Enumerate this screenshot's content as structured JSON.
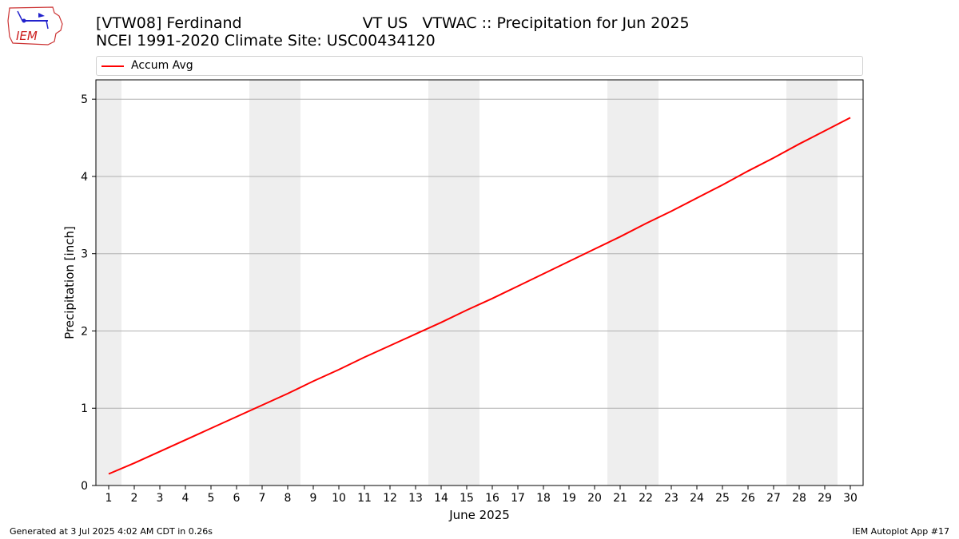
{
  "header": {
    "title_line1": "[VTW08] Ferdinand                         VT US   VTWAC :: Precipitation for Jun 2025",
    "title_line2": "NCEI 1991-2020 Climate Site: USC00434120",
    "logo_text": "IEM"
  },
  "footer": {
    "left": "Generated at 3 Jul 2025 4:02 AM CDT in 0.26s",
    "right": "IEM Autoplot App #17"
  },
  "colors": {
    "series": "#ff0000",
    "weekend_band": "#eeeeee",
    "grid": "#b0b0b0"
  },
  "chart_data": {
    "type": "line",
    "xlabel": "June 2025",
    "ylabel": "Precipitation [inch]",
    "xlim": [
      0.5,
      30.5
    ],
    "ylim": [
      0,
      5.25
    ],
    "yticks": [
      0,
      1,
      2,
      3,
      4,
      5
    ],
    "x": [
      1,
      2,
      3,
      4,
      5,
      6,
      7,
      8,
      9,
      10,
      11,
      12,
      13,
      14,
      15,
      16,
      17,
      18,
      19,
      20,
      21,
      22,
      23,
      24,
      25,
      26,
      27,
      28,
      29,
      30
    ],
    "grid": "horizontal",
    "legend_position": "top",
    "weekend_days": [
      1,
      7,
      8,
      14,
      15,
      21,
      22,
      28,
      29
    ],
    "series": [
      {
        "name": "Accum Avg",
        "values": [
          0.15,
          0.29,
          0.44,
          0.59,
          0.74,
          0.89,
          1.04,
          1.19,
          1.35,
          1.5,
          1.66,
          1.81,
          1.96,
          2.11,
          2.27,
          2.42,
          2.58,
          2.74,
          2.9,
          3.06,
          3.22,
          3.39,
          3.55,
          3.72,
          3.89,
          4.07,
          4.24,
          4.42,
          4.59,
          4.76
        ]
      }
    ]
  }
}
